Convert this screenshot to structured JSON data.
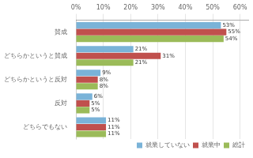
{
  "chart_data": {
    "type": "bar",
    "orientation": "horizontal",
    "categories": [
      "賛成",
      "どちらかというと賛成",
      "どちらかというと反対",
      "反対",
      "どちらでもない"
    ],
    "series": [
      {
        "name": "就業していない",
        "color": "#7ab3d8",
        "values": [
          53,
          21,
          9,
          6,
          11
        ],
        "value_labels": [
          "53%",
          "21%",
          "9%",
          "6%",
          "11%"
        ]
      },
      {
        "name": "就業中",
        "color": "#c0504d",
        "values": [
          55,
          31,
          8,
          5,
          11
        ],
        "value_labels": [
          "55%",
          "31%",
          "8%",
          "5%",
          "11%"
        ]
      },
      {
        "name": "総計",
        "color": "#9bbb59",
        "values": [
          54,
          21,
          8,
          5,
          11
        ],
        "value_labels": [
          "54%",
          "21%",
          "8%",
          "5%",
          "11%"
        ]
      }
    ],
    "xlim": [
      0,
      63
    ],
    "xticks": [
      {
        "value": 0,
        "label": "0%"
      },
      {
        "value": 10,
        "label": "10%"
      },
      {
        "value": 20,
        "label": "20%"
      },
      {
        "value": 30,
        "label": "30%"
      },
      {
        "value": 40,
        "label": "40%"
      },
      {
        "value": 50,
        "label": "50%"
      },
      {
        "value": 60,
        "label": "60%"
      }
    ],
    "grid": true,
    "data_labels": true,
    "legend": "lower right"
  }
}
